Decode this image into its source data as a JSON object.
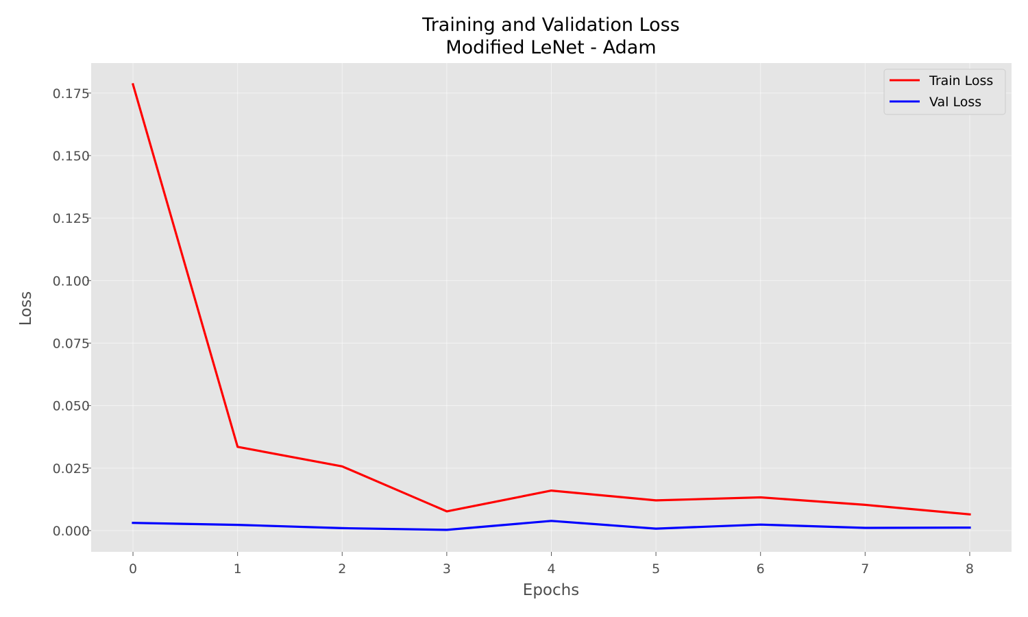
{
  "chart_data": {
    "type": "line",
    "title": "Training and Validation Loss",
    "subtitle": "Modified LeNet - Adam",
    "xlabel": "Epochs",
    "ylabel": "Loss",
    "x": [
      0,
      1,
      2,
      3,
      4,
      5,
      6,
      7,
      8
    ],
    "xticks": [
      "0",
      "1",
      "2",
      "3",
      "4",
      "5",
      "6",
      "7",
      "8"
    ],
    "yticks": [
      "0.000",
      "0.025",
      "0.050",
      "0.075",
      "0.100",
      "0.125",
      "0.150",
      "0.175"
    ],
    "ytick_values": [
      0.0,
      0.025,
      0.05,
      0.075,
      0.1,
      0.125,
      0.15,
      0.175
    ],
    "xlim": [
      -0.4,
      8.4
    ],
    "ylim": [
      -0.0085,
      0.187
    ],
    "grid": true,
    "legend_position": "top-right",
    "series": [
      {
        "name": "Train Loss",
        "color": "#ff0000",
        "values": [
          0.1785,
          0.0335,
          0.0257,
          0.0077,
          0.016,
          0.0121,
          0.0133,
          0.0103,
          0.0065
        ]
      },
      {
        "name": "Val Loss",
        "color": "#0000ff",
        "values": [
          0.0031,
          0.0023,
          0.001,
          0.0003,
          0.0039,
          0.0008,
          0.0024,
          0.0011,
          0.0012
        ]
      }
    ]
  }
}
